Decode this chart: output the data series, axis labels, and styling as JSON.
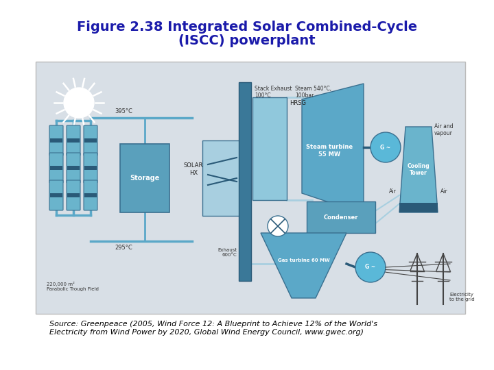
{
  "title_line1": "Figure 2.38 Integrated Solar Combined-Cycle",
  "title_line2": "(ISCC) powerplant",
  "title_color": "#1a1aaa",
  "title_fontsize": 14,
  "source_text": "Source: Greenpeace (2005, Wind Force 12: A Blueprint to Achieve 12% of the World's\nElectricity from Wind Power by 2020, Global Wind Energy Council, www.gwec.org)",
  "source_fontsize": 8,
  "source_color": "#000000",
  "bg_color": "#ffffff",
  "gray_bg": "#d8dfe6",
  "diagram_border": "#bbbbbb",
  "steel_blue": "#4a90b8",
  "dark_blue": "#2a5a78",
  "light_blue": "#a8cfe0",
  "medium_blue": "#5ba8c8",
  "box_fill": "#6ab4cc",
  "box_edge": "#3a7090",
  "storage_fill": "#5aa0bc",
  "condenser_fill": "#5aa0bc",
  "circle_fill": "#5ab8d8",
  "tower_fill": "#6ab4cc",
  "chimney_fill": "#3a7898",
  "hrsg_fill": "#90c8dc",
  "dark_line": "#444444"
}
